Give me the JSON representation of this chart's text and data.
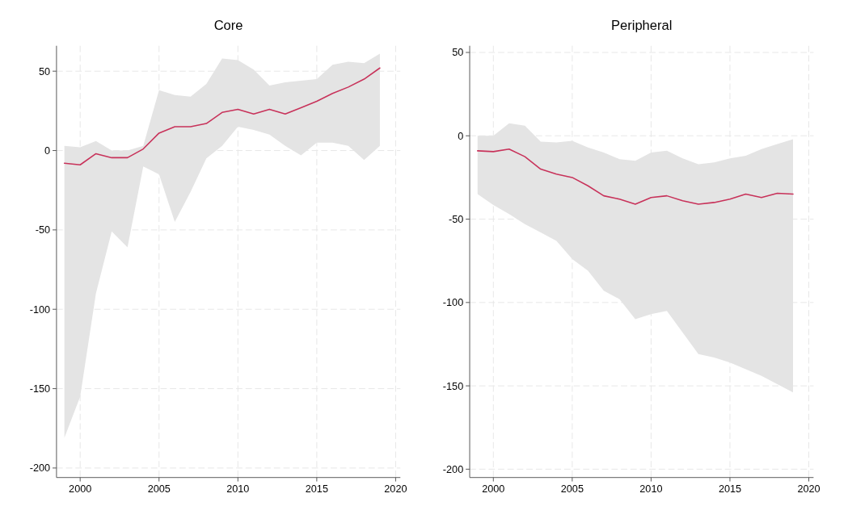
{
  "chart_data": [
    {
      "type": "line",
      "title": "Core",
      "x": [
        1999,
        2000,
        2001,
        2002,
        2003,
        2004,
        2005,
        2006,
        2007,
        2008,
        2009,
        2010,
        2011,
        2012,
        2013,
        2014,
        2015,
        2016,
        2017,
        2018,
        2019
      ],
      "series": [
        {
          "color": "#c8325a",
          "values": [
            -8,
            -9,
            -2,
            -4.5,
            -4.5,
            1,
            11,
            15,
            15,
            17,
            24,
            26,
            23,
            26,
            23,
            27,
            31,
            36,
            40,
            45,
            52
          ],
          "lower": [
            -181,
            -155,
            -90,
            -51,
            -61,
            -10,
            -15,
            -45,
            -26,
            -5,
            3,
            15,
            13,
            10,
            3,
            -3,
            5,
            5,
            3,
            -6,
            3
          ],
          "upper": [
            3,
            2,
            6,
            0,
            0,
            3,
            38,
            35,
            34,
            42,
            58,
            57,
            51,
            41,
            43,
            44,
            45,
            54,
            56,
            55,
            61
          ]
        }
      ],
      "xlim": [
        1998.5,
        2020.3
      ],
      "xticks": [
        2000,
        2005,
        2010,
        2015,
        2020
      ],
      "ylim": [
        -206,
        66
      ],
      "yticks": [
        -200,
        -150,
        -100,
        -50,
        0,
        50
      ],
      "grid": true
    },
    {
      "type": "line",
      "title": "Peripheral",
      "x": [
        1999,
        2000,
        2001,
        2002,
        2003,
        2004,
        2005,
        2006,
        2007,
        2008,
        2009,
        2010,
        2011,
        2012,
        2013,
        2014,
        2015,
        2016,
        2017,
        2018,
        2019
      ],
      "series": [
        {
          "color": "#c8325a",
          "values": [
            -9,
            -9.5,
            -8,
            -12.5,
            -20,
            -23,
            -25,
            -30,
            -36,
            -38,
            -41,
            -37,
            -36,
            -39,
            -41,
            -40,
            -38,
            -35,
            -37,
            -34.5,
            -35
          ],
          "lower": [
            -35,
            -41.5,
            -47,
            -53,
            -58,
            -63,
            -74,
            -81,
            -93,
            -98,
            -110,
            -107,
            -105,
            -118,
            -131,
            -133,
            -136,
            -140,
            -144,
            -149,
            -154
          ],
          "upper": [
            0,
            0,
            7.5,
            6,
            -3.5,
            -4,
            -3,
            -7,
            -10,
            -14,
            -15,
            -10,
            -9,
            -13.5,
            -17,
            -16,
            -13.5,
            -12,
            -8,
            -5,
            -2
          ]
        }
      ],
      "xlim": [
        1998.5,
        2020.3
      ],
      "xticks": [
        2000,
        2005,
        2010,
        2015,
        2020
      ],
      "ylim": [
        -205,
        54
      ],
      "yticks": [
        -200,
        -150,
        -100,
        -50,
        0,
        50
      ],
      "grid": true
    }
  ]
}
